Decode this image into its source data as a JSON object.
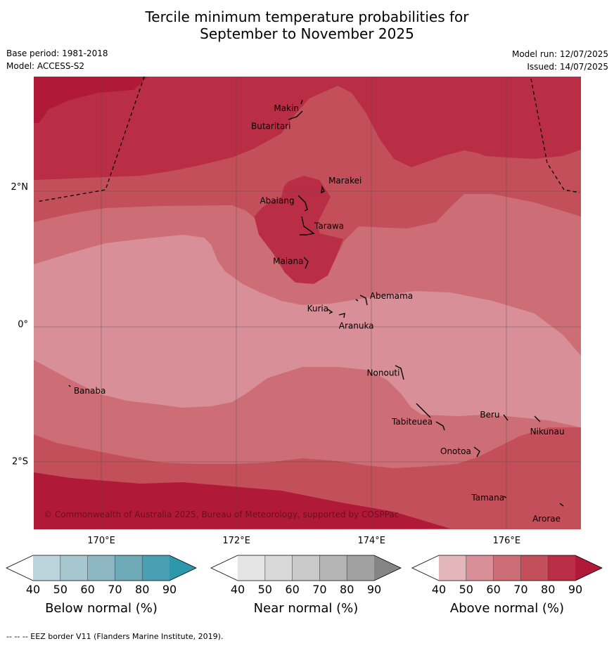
{
  "title": {
    "line1": "Tercile minimum temperature probabilities for",
    "line2": "September to November 2025"
  },
  "meta": {
    "base_period": "Base period: 1981-2018",
    "model": "Model: ACCESS-S2",
    "model_run": "Model run: 12/07/2025",
    "issued": "Issued: 14/07/2025"
  },
  "map": {
    "lon_range": [
      169.0,
      177.1
    ],
    "lat_range": [
      -3.0,
      3.6
    ],
    "grid_lons": [
      170,
      172,
      174,
      176
    ],
    "grid_lats": [
      2,
      0,
      -2
    ],
    "lon_tick_labels": [
      "170°E",
      "172°E",
      "174°E",
      "176°E"
    ],
    "lat_tick_labels": [
      "2°N",
      "0°",
      "2°S"
    ],
    "copyright": "© Commonwealth of Australia 2025, Bureau of Meteorology, supported by COSPPac",
    "islands": [
      {
        "name": "Makin",
        "lon": 172.95,
        "lat": 3.18
      },
      {
        "name": "Butaritari",
        "lon": 172.8,
        "lat": 2.95
      },
      {
        "name": "Marakei",
        "lon": 173.28,
        "lat": 2.0
      },
      {
        "name": "Abaiang",
        "lon": 172.93,
        "lat": 1.84
      },
      {
        "name": "Tarawa",
        "lon": 173.05,
        "lat": 1.42
      },
      {
        "name": "Maiana",
        "lon": 173.02,
        "lat": 0.93
      },
      {
        "name": "Abemama",
        "lon": 173.87,
        "lat": 0.4
      },
      {
        "name": "Kuria",
        "lon": 173.4,
        "lat": 0.22
      },
      {
        "name": "Aranuka",
        "lon": 173.62,
        "lat": 0.15
      },
      {
        "name": "Nonouti",
        "lon": 174.43,
        "lat": -0.68
      },
      {
        "name": "Banaba",
        "lon": 169.55,
        "lat": -0.88
      },
      {
        "name": "Tabiteuea",
        "lon": 174.82,
        "lat": -1.35
      },
      {
        "name": "Beru",
        "lon": 176.0,
        "lat": -1.33
      },
      {
        "name": "Nikunau",
        "lon": 176.45,
        "lat": -1.35
      },
      {
        "name": "Onotoa",
        "lon": 175.58,
        "lat": -1.8
      },
      {
        "name": "Tamana",
        "lon": 175.98,
        "lat": -2.5
      },
      {
        "name": "Arorae",
        "lon": 176.82,
        "lat": -2.64
      }
    ]
  },
  "colorbars": [
    {
      "label": "Below normal (%)",
      "ticks": [
        "40",
        "50",
        "60",
        "70",
        "80",
        "90"
      ],
      "colors": [
        "#ffffff",
        "#bcd4dc",
        "#a6c7cf",
        "#8db7c3",
        "#6eaab8",
        "#4aa0b2",
        "#2d98a9"
      ]
    },
    {
      "label": "Near normal (%)",
      "ticks": [
        "40",
        "50",
        "60",
        "70",
        "80",
        "90"
      ],
      "colors": [
        "#ffffff",
        "#e4e4e4",
        "#d8d8d8",
        "#c9c9c9",
        "#b5b5b5",
        "#a1a1a1",
        "#858585"
      ]
    },
    {
      "label": "Above normal (%)",
      "ticks": [
        "40",
        "50",
        "60",
        "70",
        "80",
        "90"
      ],
      "colors": [
        "#ffffff",
        "#e3b6bc",
        "#d88f97",
        "#cd6e77",
        "#c34f5b",
        "#b92e45",
        "#b01a38"
      ]
    }
  ],
  "footer": "--  --  -- EEZ border V11 (Flanders Marine Institute, 2019)."
}
